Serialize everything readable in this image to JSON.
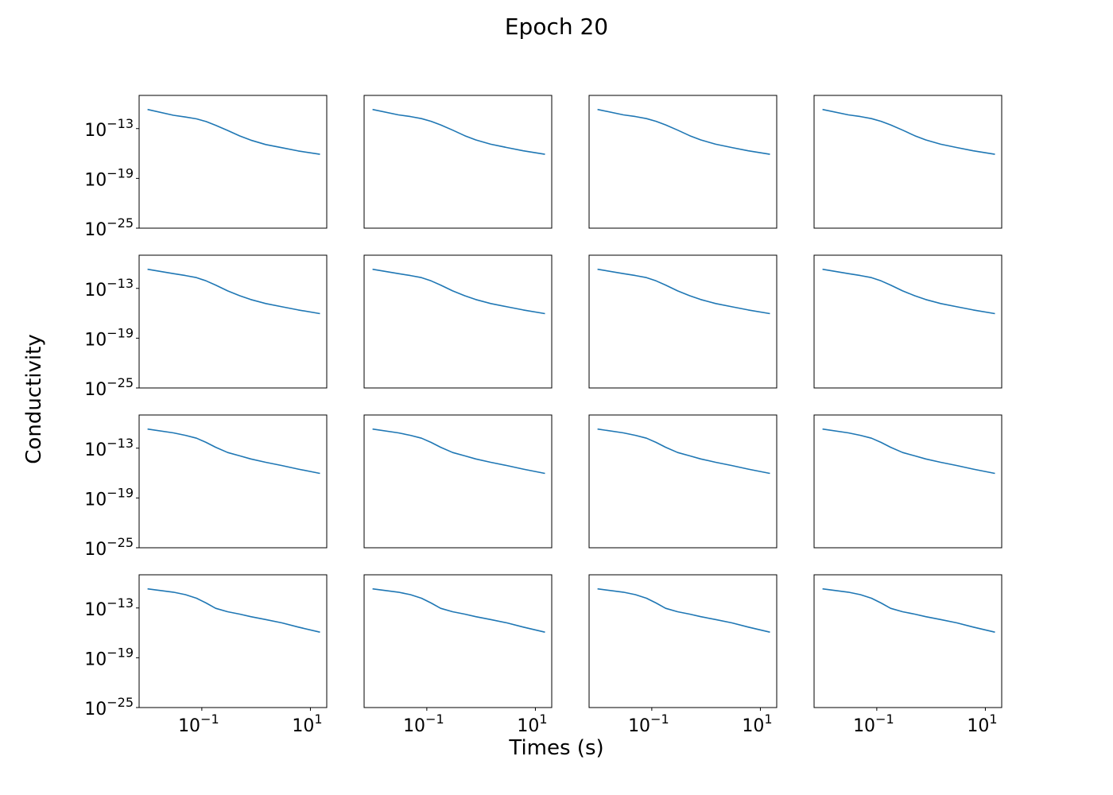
{
  "figure": {
    "title": "Epoch 20",
    "xlabel": "Times (s)",
    "ylabel": "Conductivity",
    "line_color": "#1f77b4"
  },
  "chart_data": {
    "type": "line",
    "layout": "4x4 grid of subplots",
    "x_scale": "log",
    "y_scale": "log",
    "xlim": [
      0.007,
      20
    ],
    "ylim": [
      1e-25,
      1e-09
    ],
    "x_ticks": [
      {
        "value": 0.1,
        "base": "10",
        "exp": "−1"
      },
      {
        "value": 10,
        "base": "10",
        "exp": "1"
      }
    ],
    "y_ticks": [
      {
        "value": 1e-13,
        "base": "10",
        "exp": "−13"
      },
      {
        "value": 1e-19,
        "base": "10",
        "exp": "−19"
      },
      {
        "value": 1e-25,
        "base": "10",
        "exp": "−25"
      }
    ],
    "x": [
      0.01,
      0.03,
      0.05,
      0.08,
      0.12,
      0.18,
      0.3,
      0.5,
      0.8,
      1.5,
      3,
      6,
      15
    ],
    "rows": [
      {
        "series": [
          {
            "values": [
              2e-11,
              4e-12,
              2.5e-12,
              1.5e-12,
              7e-13,
              2.5e-13,
              6e-14,
              1.3e-14,
              4e-15,
              1.2e-15,
              5e-16,
              2e-16,
              8e-17
            ]
          },
          {
            "values": [
              2e-11,
              4.5e-12,
              2.8e-12,
              1.6e-12,
              7.5e-13,
              2.8e-13,
              6.5e-14,
              1.4e-14,
              4.3e-15,
              1.3e-15,
              5.2e-16,
              2.1e-16,
              8e-17
            ]
          },
          {
            "values": [
              2e-11,
              4.5e-12,
              2.8e-12,
              1.6e-12,
              7.5e-13,
              2.8e-13,
              6.5e-14,
              1.4e-14,
              4.3e-15,
              1.3e-15,
              5.2e-16,
              2.1e-16,
              8e-17
            ]
          },
          {
            "values": [
              2e-11,
              4.5e-12,
              2.8e-12,
              1.6e-12,
              7.5e-13,
              2.8e-13,
              6.5e-14,
              1.4e-14,
              4.3e-15,
              1.3e-15,
              5.2e-16,
              2.1e-16,
              8e-17
            ]
          }
        ]
      },
      {
        "series": [
          {
            "values": [
              2e-11,
              6e-12,
              3.5e-12,
              2e-12,
              8e-13,
              2.5e-13,
              5e-14,
              1.3e-14,
              4.5e-15,
              1.5e-15,
              6e-16,
              2.5e-16,
              9e-17
            ]
          },
          {
            "values": [
              2e-11,
              6e-12,
              3.5e-12,
              2e-12,
              8e-13,
              2.5e-13,
              5e-14,
              1.3e-14,
              4.5e-15,
              1.5e-15,
              6e-16,
              2.5e-16,
              9e-17
            ]
          },
          {
            "values": [
              2e-11,
              6e-12,
              3.5e-12,
              2e-12,
              8e-13,
              2.5e-13,
              5e-14,
              1.3e-14,
              4.5e-15,
              1.5e-15,
              6e-16,
              2.5e-16,
              9e-17
            ]
          },
          {
            "values": [
              2e-11,
              6e-12,
              3.5e-12,
              2e-12,
              8e-13,
              2.5e-13,
              5e-14,
              1.3e-14,
              4.5e-15,
              1.5e-15,
              6e-16,
              2.5e-16,
              9e-17
            ]
          }
        ]
      },
      {
        "series": [
          {
            "values": [
              2e-11,
              7e-12,
              3.5e-12,
              1.6e-12,
              5e-13,
              1.3e-13,
              3e-14,
              1.2e-14,
              5e-15,
              2e-15,
              8e-16,
              3e-16,
              9e-17
            ]
          },
          {
            "values": [
              2e-11,
              7e-12,
              3.5e-12,
              1.6e-12,
              5e-13,
              1.3e-13,
              3e-14,
              1.2e-14,
              5e-15,
              2e-15,
              8e-16,
              3e-16,
              9e-17
            ]
          },
          {
            "values": [
              2e-11,
              7e-12,
              3.5e-12,
              1.6e-12,
              5e-13,
              1.3e-13,
              3e-14,
              1.2e-14,
              5e-15,
              2e-15,
              8e-16,
              3e-16,
              9e-17
            ]
          },
          {
            "values": [
              2e-11,
              7e-12,
              3.5e-12,
              1.6e-12,
              5e-13,
              1.3e-13,
              3e-14,
              1.2e-14,
              5e-15,
              2e-15,
              8e-16,
              3e-16,
              9e-17
            ]
          }
        ]
      },
      {
        "series": [
          {
            "values": [
              2e-11,
              8e-12,
              4e-12,
              1.5e-12,
              4e-13,
              9e-14,
              3.5e-14,
              1.8e-14,
              9e-15,
              4e-15,
              1.6e-15,
              5e-16,
              1.2e-16
            ]
          },
          {
            "values": [
              2e-11,
              8e-12,
              4e-12,
              1.5e-12,
              4e-13,
              9e-14,
              3.5e-14,
              1.8e-14,
              9e-15,
              4e-15,
              1.6e-15,
              5e-16,
              1.2e-16
            ]
          },
          {
            "values": [
              2e-11,
              8e-12,
              4e-12,
              1.5e-12,
              4e-13,
              9e-14,
              3.5e-14,
              1.8e-14,
              9e-15,
              4e-15,
              1.6e-15,
              5e-16,
              1.2e-16
            ]
          },
          {
            "values": [
              2e-11,
              8e-12,
              4e-12,
              1.5e-12,
              4e-13,
              9e-14,
              3.5e-14,
              1.8e-14,
              9e-15,
              4e-15,
              1.6e-15,
              5e-16,
              1.2e-16
            ]
          }
        ]
      }
    ],
    "grid": false,
    "legend": "none"
  }
}
